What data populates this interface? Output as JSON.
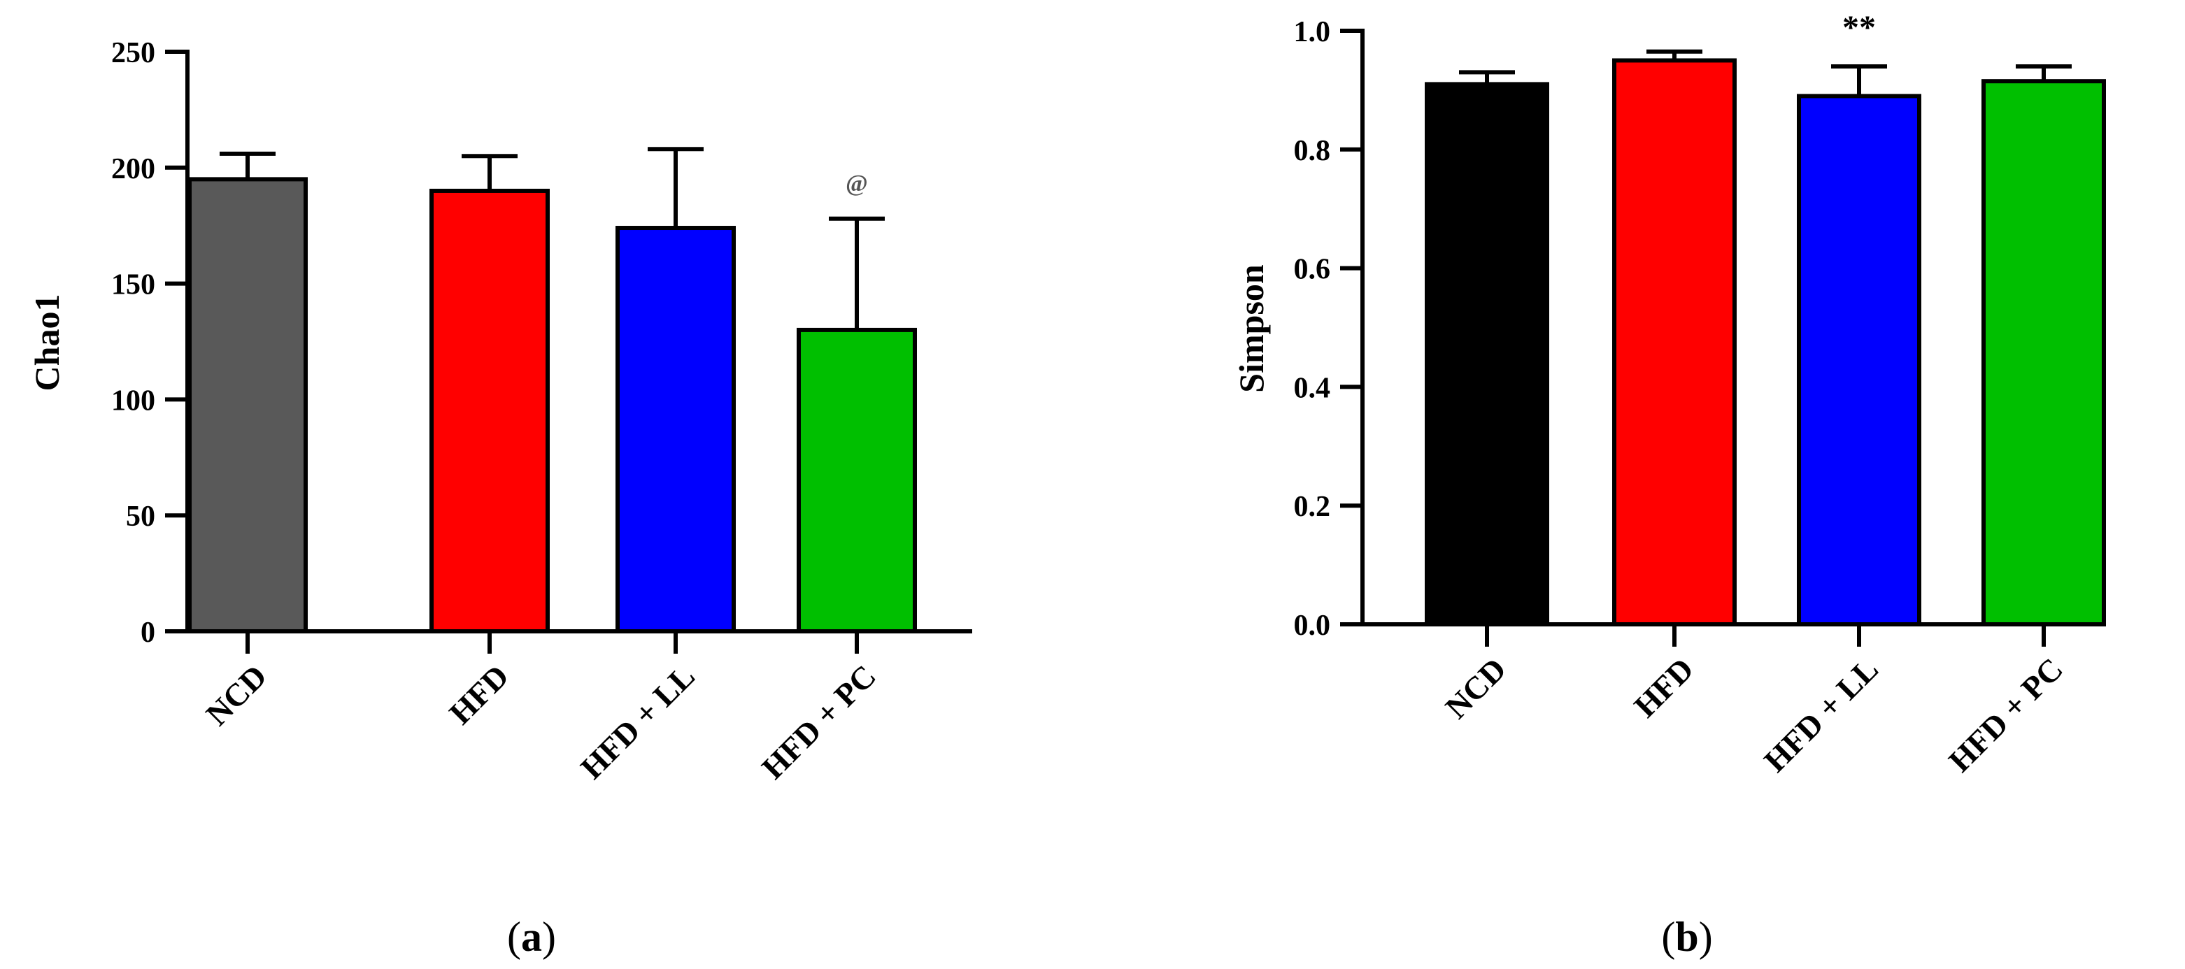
{
  "chart_data": [
    {
      "type": "bar",
      "panel_label": "a",
      "categories": [
        "NCD",
        "HFD",
        "HFD + LL",
        "HFD + PC"
      ],
      "values": [
        195,
        190,
        174,
        130
      ],
      "errors": [
        11,
        15,
        34,
        48
      ],
      "colors": [
        "#595959",
        "#ff0000",
        "#0000ff",
        "#00bf00"
      ],
      "annotations": [
        "",
        "",
        "",
        "@"
      ],
      "ylabel": "Chao1",
      "ylim": [
        0,
        250
      ],
      "yticks": [
        0,
        50,
        100,
        150,
        200,
        250
      ],
      "grid": false,
      "legend": "none"
    },
    {
      "type": "bar",
      "panel_label": "b",
      "categories": [
        "NCD",
        "HFD",
        "HFD + LL",
        "HFD + PC"
      ],
      "values": [
        0.91,
        0.95,
        0.89,
        0.915
      ],
      "errors": [
        0.02,
        0.015,
        0.05,
        0.025
      ],
      "colors": [
        "#000000",
        "#ff0000",
        "#0000ff",
        "#00bf00"
      ],
      "annotations": [
        "",
        "",
        "**",
        ""
      ],
      "ylabel": "Simpson",
      "ylim": [
        0,
        1.0
      ],
      "yticks": [
        "0.0",
        "0.2",
        "0.4",
        "0.6",
        "0.8",
        "1.0"
      ],
      "grid": false,
      "legend": "none"
    }
  ]
}
